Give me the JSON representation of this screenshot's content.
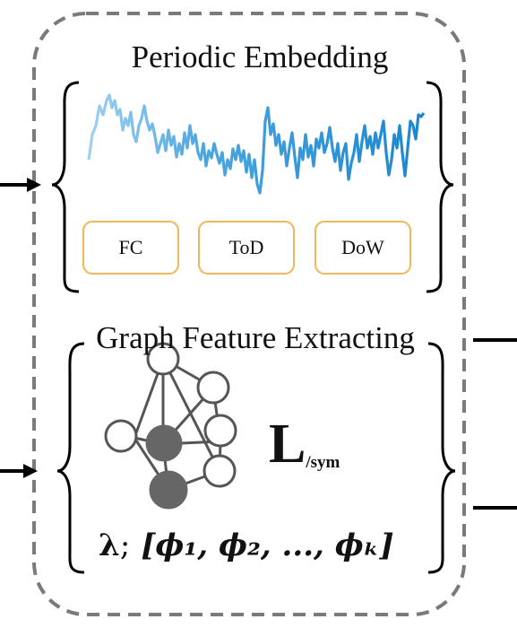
{
  "periodic": {
    "title": "Periodic Embedding",
    "boxes": [
      "FC",
      "ToD",
      "DoW"
    ],
    "accent": "#f0b75a",
    "signal_color": "#3a9ad9"
  },
  "graph": {
    "title": "Graph Feature Extracting",
    "laplacian_symbol": "L",
    "laplacian_subscript": "/sym",
    "eigen_lambda": "λ",
    "eigen_sep": ";",
    "eigen_list": "[ϕ₁, ϕ₂, ..., ϕₖ]"
  },
  "icons": {
    "graph": "neural-graph-icon"
  }
}
